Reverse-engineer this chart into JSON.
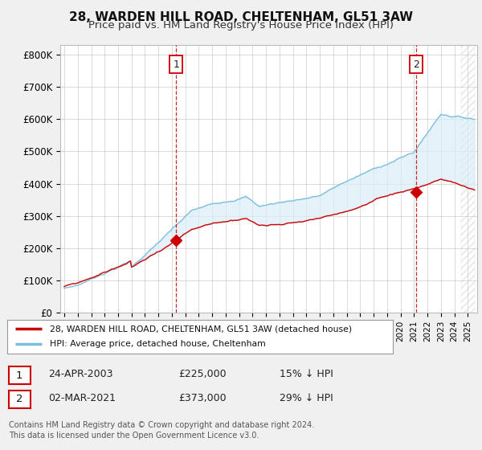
{
  "title": "28, WARDEN HILL ROAD, CHELTENHAM, GL51 3AW",
  "subtitle": "Price paid vs. HM Land Registry's House Price Index (HPI)",
  "ylabel_ticks": [
    "£0",
    "£100K",
    "£200K",
    "£300K",
    "£400K",
    "£500K",
    "£600K",
    "£700K",
    "£800K"
  ],
  "ytick_values": [
    0,
    100000,
    200000,
    300000,
    400000,
    500000,
    600000,
    700000,
    800000
  ],
  "ylim": [
    0,
    830000
  ],
  "xlim_start": 1994.7,
  "xlim_end": 2025.7,
  "hpi_color": "#7bbfdf",
  "hpi_fill_color": "#daedf7",
  "price_color": "#cc0000",
  "vline_color": "#cc0000",
  "marker1_date": 2003.31,
  "marker1_price": 225000,
  "marker1_label": "1",
  "marker2_date": 2021.17,
  "marker2_price": 373000,
  "marker2_label": "2",
  "legend_line1": "28, WARDEN HILL ROAD, CHELTENHAM, GL51 3AW (detached house)",
  "legend_line2": "HPI: Average price, detached house, Cheltenham",
  "table_row1": [
    "1",
    "24-APR-2003",
    "£225,000",
    "15% ↓ HPI"
  ],
  "table_row2": [
    "2",
    "02-MAR-2021",
    "£373,000",
    "29% ↓ HPI"
  ],
  "footer": "Contains HM Land Registry data © Crown copyright and database right 2024.\nThis data is licensed under the Open Government Licence v3.0.",
  "background_color": "#f0f0f0",
  "plot_bg_color": "#ffffff",
  "title_fontsize": 11,
  "subtitle_fontsize": 9.5,
  "hatch_start": 2024.5
}
